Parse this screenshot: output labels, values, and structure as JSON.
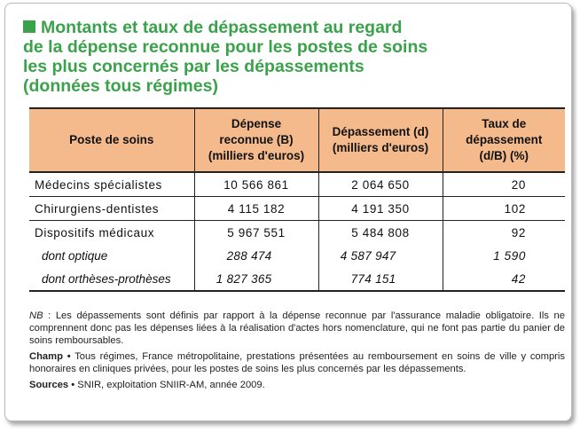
{
  "title": {
    "lines": [
      "Montants et taux de dépassement au regard",
      "de la dépense reconnue pour les postes de soins",
      "les plus concernés par les dépassements",
      "(données tous régimes)"
    ]
  },
  "table": {
    "headers": [
      [
        "Poste de soins"
      ],
      [
        "Dépense",
        "reconnue (B)",
        "(milliers d'euros)"
      ],
      [
        "Dépassement (d)",
        "(milliers d'euros)"
      ],
      [
        "Taux de",
        "dépassement",
        "(d/B) (%)"
      ]
    ],
    "rows": [
      {
        "label": "Médecins spécialistes",
        "b": "10 566 861",
        "d": "2 064 650",
        "rate": "20"
      },
      {
        "label": "Chirurgiens-dentistes",
        "b": "4 115 182",
        "d": "4 191 350",
        "rate": "102"
      },
      {
        "label": "Dispositifs médicaux",
        "b": "5 967 551",
        "d": "5 484 808",
        "rate": "92"
      },
      {
        "label": "dont optique",
        "b": "288 474",
        "d": "4 587 947",
        "rate": "1 590"
      },
      {
        "label": "dont orthèses-prothèses",
        "b": "1 827 365",
        "d": "774 151",
        "rate": "42"
      }
    ]
  },
  "notes": {
    "nb_label": "NB",
    "nb_text": " : Les dépassements sont définis par rapport à la dépense reconnue par l'assurance maladie obligatoire. Ils ne comprennent donc pas les dépenses liées à la réalisation d'actes hors nomenclature, qui ne font pas partie du panier de soins remboursables.",
    "champ_label": "Champ •",
    "champ_text": " Tous régimes, France métropolitaine, prestations présentées au remboursement en soins de ville y compris honoraires en cliniques privées, pour les postes de soins les plus concernés par les dépassements.",
    "sources_label": "Sources •",
    "sources_text": " SNIR, exploitation SNIIR-AM, année 2009."
  }
}
